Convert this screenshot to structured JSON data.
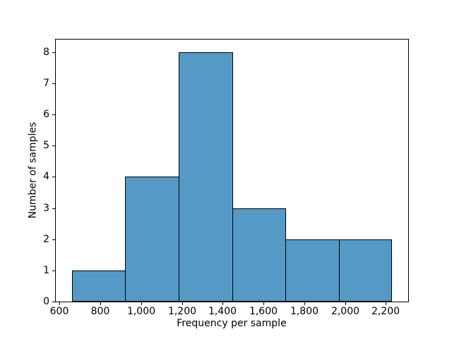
{
  "chart_data": {
    "type": "bar",
    "subtype": "histogram",
    "title": "",
    "xlabel": "Frequency per sample",
    "ylabel": "Number of samples",
    "bin_edges": [
      660,
      922,
      1184,
      1446,
      1708,
      1970,
      2232
    ],
    "values": [
      1,
      4,
      8,
      3,
      2,
      2
    ],
    "xlim": [
      581,
      2310
    ],
    "ylim": [
      0,
      8.4
    ],
    "x_ticks": [
      600,
      800,
      1000,
      1200,
      1400,
      1600,
      1800,
      2000,
      2200
    ],
    "x_tick_labels": [
      "600",
      "800",
      "1,000",
      "1,200",
      "1,400",
      "1,600",
      "1,800",
      "2,000",
      "2,200"
    ],
    "y_ticks": [
      0,
      1,
      2,
      3,
      4,
      5,
      6,
      7,
      8
    ],
    "y_tick_labels": [
      "0",
      "1",
      "2",
      "3",
      "4",
      "5",
      "6",
      "7",
      "8"
    ],
    "grid": false,
    "legend": null,
    "colors": {
      "bar_fill": "#5599C7",
      "bar_edge": "#000000",
      "axis": "#000000",
      "background": "#ffffff"
    }
  }
}
